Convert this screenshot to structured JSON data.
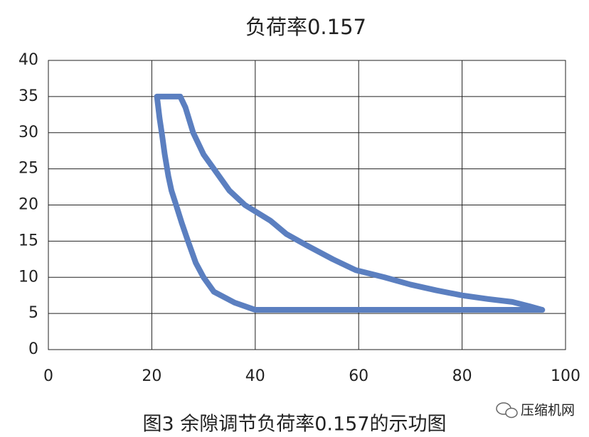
{
  "chart_data": {
    "type": "line",
    "title": "负荷率0.157",
    "caption": "图3 余隙调节负荷率0.157的示功图",
    "watermark": "压缩机网",
    "series": [
      {
        "color": "#5b7fc0",
        "x": [
          21,
          25.5,
          26.5,
          28,
          30,
          32.5,
          35,
          38,
          43,
          46,
          50,
          55,
          59.4,
          65,
          70,
          75,
          80,
          85,
          89.7,
          93,
          95.5,
          40,
          36,
          32,
          30,
          28.5,
          27,
          25.8,
          24.7,
          23.8,
          23.2,
          22.5,
          22,
          21.5,
          21
        ],
        "y": [
          35,
          35,
          33.5,
          30,
          27,
          24.5,
          22,
          20,
          17.8,
          16,
          14.4,
          12.5,
          11,
          10,
          9,
          8.2,
          7.5,
          7,
          6.6,
          6,
          5.5,
          5.5,
          6.5,
          8,
          10,
          12,
          15,
          17.5,
          20,
          22,
          24,
          27,
          29.6,
          32,
          35
        ]
      }
    ],
    "xlim": [
      0,
      100
    ],
    "xticks": [
      0,
      20,
      40,
      60,
      80,
      100
    ],
    "ylim": [
      0,
      40
    ],
    "yticks": [
      0,
      5,
      10,
      15,
      20,
      25,
      30,
      35,
      40
    ],
    "grid": true
  }
}
